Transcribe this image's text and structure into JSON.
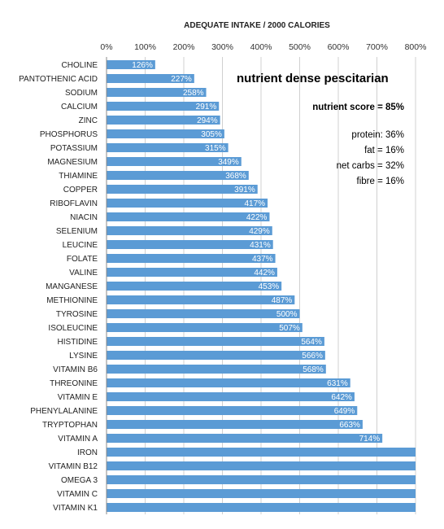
{
  "chart_data": {
    "type": "bar",
    "orientation": "horizontal",
    "title": "ADEQUATE INTAKE / 2000 CALORIES",
    "xlabel": "",
    "ylabel": "",
    "xlim": [
      0,
      800
    ],
    "x_ticks": [
      "0%",
      "100%",
      "200%",
      "300%",
      "400%",
      "500%",
      "600%",
      "700%",
      "800%"
    ],
    "grid": true,
    "bar_color": "#5b9bd5",
    "categories": [
      "CHOLINE",
      "PANTOTHENIC ACID",
      "SODIUM",
      "CALCIUM",
      "ZINC",
      "PHOSPHORUS",
      "POTASSIUM",
      "MAGNESIUM",
      "THIAMINE",
      "COPPER",
      "RIBOFLAVIN",
      "NIACIN",
      "SELENIUM",
      "LEUCINE",
      "FOLATE",
      "VALINE",
      "MANGANESE",
      "METHIONINE",
      "TYROSINE",
      "ISOLEUCINE",
      "HISTIDINE",
      "LYSINE",
      "VITAMIN B6",
      "THREONINE",
      "VITAMIN E",
      "PHENYLALANINE",
      "TRYPTOPHAN",
      "VITAMIN A",
      "IRON",
      "VITAMIN B12",
      "OMEGA 3",
      "VITAMIN C",
      "VITAMIN K1"
    ],
    "values": [
      126,
      227,
      258,
      291,
      294,
      305,
      315,
      349,
      368,
      391,
      417,
      422,
      429,
      431,
      437,
      442,
      453,
      487,
      500,
      507,
      564,
      566,
      568,
      631,
      642,
      649,
      663,
      714,
      800,
      800,
      800,
      800,
      800
    ],
    "data_labels": [
      "126%",
      "227%",
      "258%",
      "291%",
      "294%",
      "305%",
      "315%",
      "349%",
      "368%",
      "391%",
      "417%",
      "422%",
      "429%",
      "431%",
      "437%",
      "442%",
      "453%",
      "487%",
      "500%",
      "507%",
      "564%",
      "566%",
      "568%",
      "631%",
      "642%",
      "649%",
      "663%",
      "714%",
      "",
      "",
      "",
      "",
      ""
    ]
  },
  "annotations": {
    "heading": "nutrient dense pescitarian",
    "score": "nutrient score = 85%",
    "lines": [
      "protein: 36%",
      "fat = 16%",
      "net carbs = 32%",
      "fibre = 16%"
    ]
  }
}
